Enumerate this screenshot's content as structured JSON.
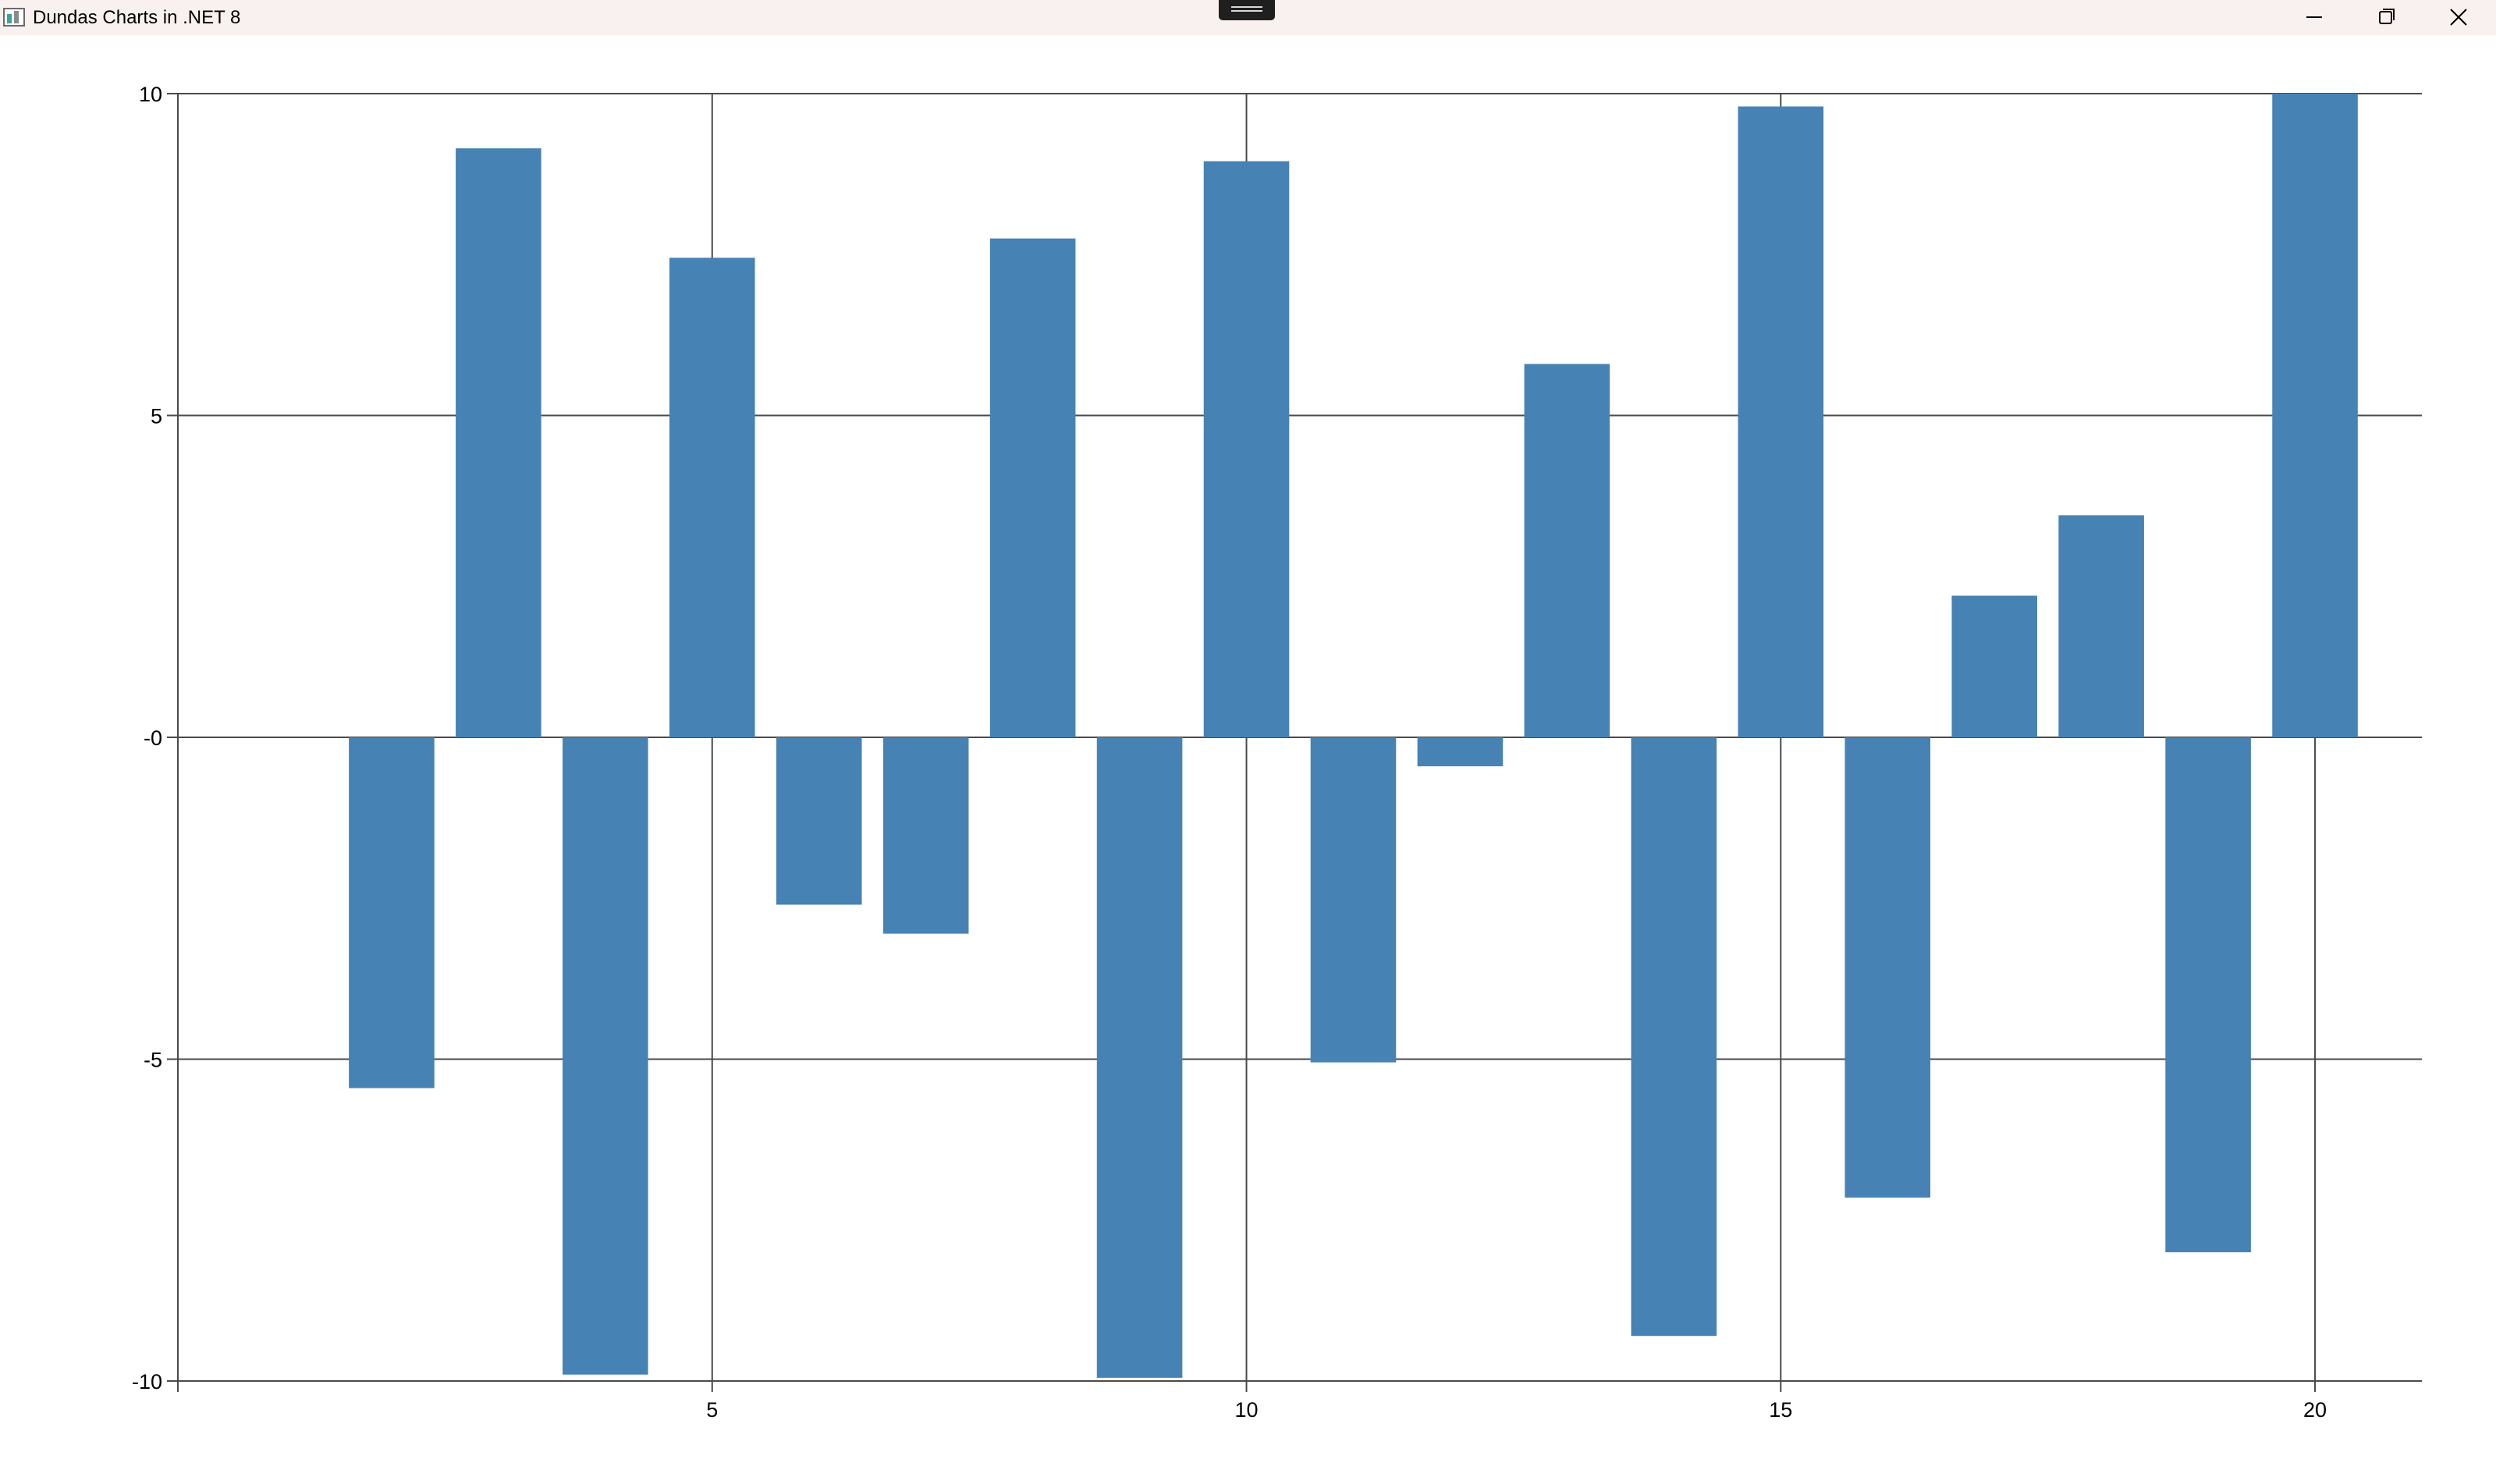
{
  "window": {
    "title": "Dundas Charts in .NET 8",
    "minimize_icon": "minimize-icon",
    "restore_icon": "restore-icon",
    "close_icon": "close-icon"
  },
  "colors": {
    "bar": "#4682b4",
    "grid": "#4a4a4a",
    "titlebar": "#f8f1ef"
  },
  "chart_data": {
    "type": "bar",
    "x": [
      2,
      3,
      4,
      5,
      6,
      7,
      8,
      9,
      10,
      11,
      12,
      13,
      14,
      15,
      16,
      17,
      18,
      19,
      20
    ],
    "values": [
      -5.45,
      9.15,
      -9.9,
      7.45,
      -2.6,
      -3.05,
      7.75,
      -9.95,
      8.95,
      -5.05,
      -0.45,
      5.8,
      -9.3,
      9.8,
      -7.15,
      2.2,
      3.45,
      -8.0,
      10.0
    ],
    "xlim": [
      0,
      21
    ],
    "ylim": [
      -10,
      10
    ],
    "x_ticks": [
      5,
      10,
      15,
      20
    ],
    "x_tick_labels": [
      "5",
      "10",
      "15",
      "20"
    ],
    "y_ticks": [
      10,
      5,
      0,
      -5,
      -10
    ],
    "y_tick_labels": [
      "10",
      "5",
      "-0",
      "-5",
      "-10"
    ],
    "grid": true,
    "legend": "none",
    "title": "",
    "xlabel": "",
    "ylabel": ""
  }
}
